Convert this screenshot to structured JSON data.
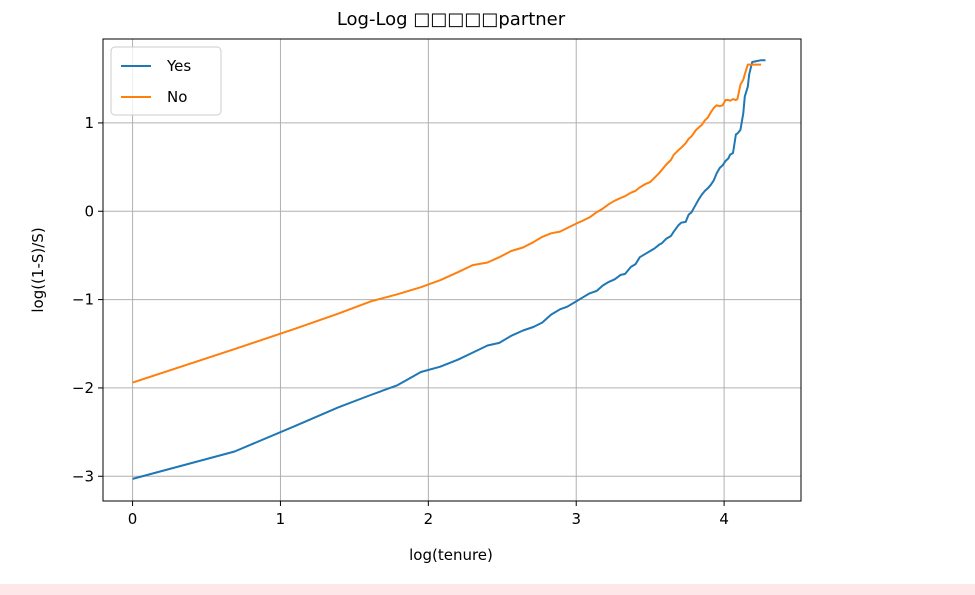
{
  "chart_data": {
    "type": "line",
    "title": "Log-Log □□□□□partner",
    "xlabel": "log(tenure)",
    "ylabel": "log((1-S)/S)",
    "xlim": [
      -0.2,
      4.52
    ],
    "ylim": [
      -3.28,
      1.95
    ],
    "xticks": [
      "0",
      "1",
      "2",
      "3",
      "4"
    ],
    "yticks": [
      "1",
      "0",
      "−1",
      "−2",
      "−3"
    ],
    "xtick_values": [
      0,
      1,
      2,
      3,
      4
    ],
    "ytick_values": [
      1,
      0,
      -1,
      -2,
      -3
    ],
    "grid": true,
    "legend_position": "top-left",
    "series": [
      {
        "name": "Yes",
        "color": "#1f77b4",
        "points": [
          [
            0,
            -3.03
          ],
          [
            0.69,
            -2.72
          ],
          [
            1.1,
            -2.43
          ],
          [
            1.39,
            -2.22
          ],
          [
            1.61,
            -2.08
          ],
          [
            1.79,
            -1.97
          ],
          [
            1.95,
            -1.82
          ],
          [
            2.08,
            -1.76
          ],
          [
            2.2,
            -1.68
          ],
          [
            2.3,
            -1.6
          ],
          [
            2.4,
            -1.52
          ],
          [
            2.48,
            -1.49
          ],
          [
            2.56,
            -1.41
          ],
          [
            2.64,
            -1.35
          ],
          [
            2.71,
            -1.31
          ],
          [
            2.77,
            -1.26
          ],
          [
            2.83,
            -1.17
          ],
          [
            2.89,
            -1.11
          ],
          [
            2.94,
            -1.08
          ],
          [
            3.0,
            -1.02
          ],
          [
            3.04,
            -0.98
          ],
          [
            3.09,
            -0.93
          ],
          [
            3.14,
            -0.9
          ],
          [
            3.18,
            -0.84
          ],
          [
            3.22,
            -0.8
          ],
          [
            3.26,
            -0.77
          ],
          [
            3.3,
            -0.72
          ],
          [
            3.33,
            -0.71
          ],
          [
            3.37,
            -0.63
          ],
          [
            3.4,
            -0.6
          ],
          [
            3.43,
            -0.52
          ],
          [
            3.47,
            -0.48
          ],
          [
            3.5,
            -0.45
          ],
          [
            3.53,
            -0.42
          ],
          [
            3.56,
            -0.38
          ],
          [
            3.58,
            -0.36
          ],
          [
            3.61,
            -0.31
          ],
          [
            3.64,
            -0.28
          ],
          [
            3.66,
            -0.23
          ],
          [
            3.69,
            -0.16
          ],
          [
            3.71,
            -0.13
          ],
          [
            3.74,
            -0.12
          ],
          [
            3.76,
            -0.04
          ],
          [
            3.78,
            -0.01
          ],
          [
            3.81,
            0.08
          ],
          [
            3.83,
            0.14
          ],
          [
            3.85,
            0.19
          ],
          [
            3.87,
            0.23
          ],
          [
            3.89,
            0.26
          ],
          [
            3.91,
            0.3
          ],
          [
            3.93,
            0.35
          ],
          [
            3.95,
            0.43
          ],
          [
            3.97,
            0.49
          ],
          [
            3.99,
            0.52
          ],
          [
            4.01,
            0.57
          ],
          [
            4.03,
            0.6
          ],
          [
            4.04,
            0.64
          ],
          [
            4.06,
            0.66
          ],
          [
            4.08,
            0.87
          ],
          [
            4.09,
            0.88
          ],
          [
            4.11,
            0.92
          ],
          [
            4.13,
            1.11
          ],
          [
            4.14,
            1.3
          ],
          [
            4.16,
            1.41
          ],
          [
            4.17,
            1.55
          ],
          [
            4.19,
            1.69
          ],
          [
            4.22,
            1.7
          ],
          [
            4.25,
            1.71
          ],
          [
            4.28,
            1.71
          ]
        ]
      },
      {
        "name": "No",
        "color": "#ff7f0e",
        "points": [
          [
            0,
            -1.94
          ],
          [
            0.69,
            -1.56
          ],
          [
            1.1,
            -1.33
          ],
          [
            1.39,
            -1.16
          ],
          [
            1.61,
            -1.02
          ],
          [
            1.79,
            -0.94
          ],
          [
            1.95,
            -0.86
          ],
          [
            2.08,
            -0.78
          ],
          [
            2.2,
            -0.69
          ],
          [
            2.3,
            -0.61
          ],
          [
            2.4,
            -0.58
          ],
          [
            2.48,
            -0.52
          ],
          [
            2.56,
            -0.45
          ],
          [
            2.64,
            -0.41
          ],
          [
            2.71,
            -0.35
          ],
          [
            2.77,
            -0.29
          ],
          [
            2.83,
            -0.25
          ],
          [
            2.89,
            -0.23
          ],
          [
            2.94,
            -0.19
          ],
          [
            3.0,
            -0.14
          ],
          [
            3.04,
            -0.11
          ],
          [
            3.09,
            -0.07
          ],
          [
            3.14,
            -0.01
          ],
          [
            3.18,
            0.03
          ],
          [
            3.22,
            0.08
          ],
          [
            3.26,
            0.12
          ],
          [
            3.3,
            0.15
          ],
          [
            3.33,
            0.17
          ],
          [
            3.37,
            0.21
          ],
          [
            3.4,
            0.23
          ],
          [
            3.43,
            0.27
          ],
          [
            3.47,
            0.31
          ],
          [
            3.5,
            0.33
          ],
          [
            3.53,
            0.38
          ],
          [
            3.56,
            0.43
          ],
          [
            3.58,
            0.47
          ],
          [
            3.61,
            0.53
          ],
          [
            3.64,
            0.58
          ],
          [
            3.66,
            0.64
          ],
          [
            3.69,
            0.69
          ],
          [
            3.71,
            0.72
          ],
          [
            3.74,
            0.77
          ],
          [
            3.76,
            0.82
          ],
          [
            3.78,
            0.85
          ],
          [
            3.81,
            0.92
          ],
          [
            3.83,
            0.95
          ],
          [
            3.85,
            0.98
          ],
          [
            3.87,
            1.03
          ],
          [
            3.89,
            1.06
          ],
          [
            3.91,
            1.12
          ],
          [
            3.93,
            1.17
          ],
          [
            3.95,
            1.2
          ],
          [
            3.97,
            1.19
          ],
          [
            3.99,
            1.2
          ],
          [
            4.01,
            1.26
          ],
          [
            4.03,
            1.26
          ],
          [
            4.04,
            1.25
          ],
          [
            4.06,
            1.27
          ],
          [
            4.08,
            1.26
          ],
          [
            4.09,
            1.27
          ],
          [
            4.11,
            1.43
          ],
          [
            4.13,
            1.49
          ],
          [
            4.14,
            1.55
          ],
          [
            4.16,
            1.66
          ],
          [
            4.19,
            1.66
          ],
          [
            4.22,
            1.66
          ],
          [
            4.25,
            1.66
          ]
        ]
      }
    ]
  }
}
